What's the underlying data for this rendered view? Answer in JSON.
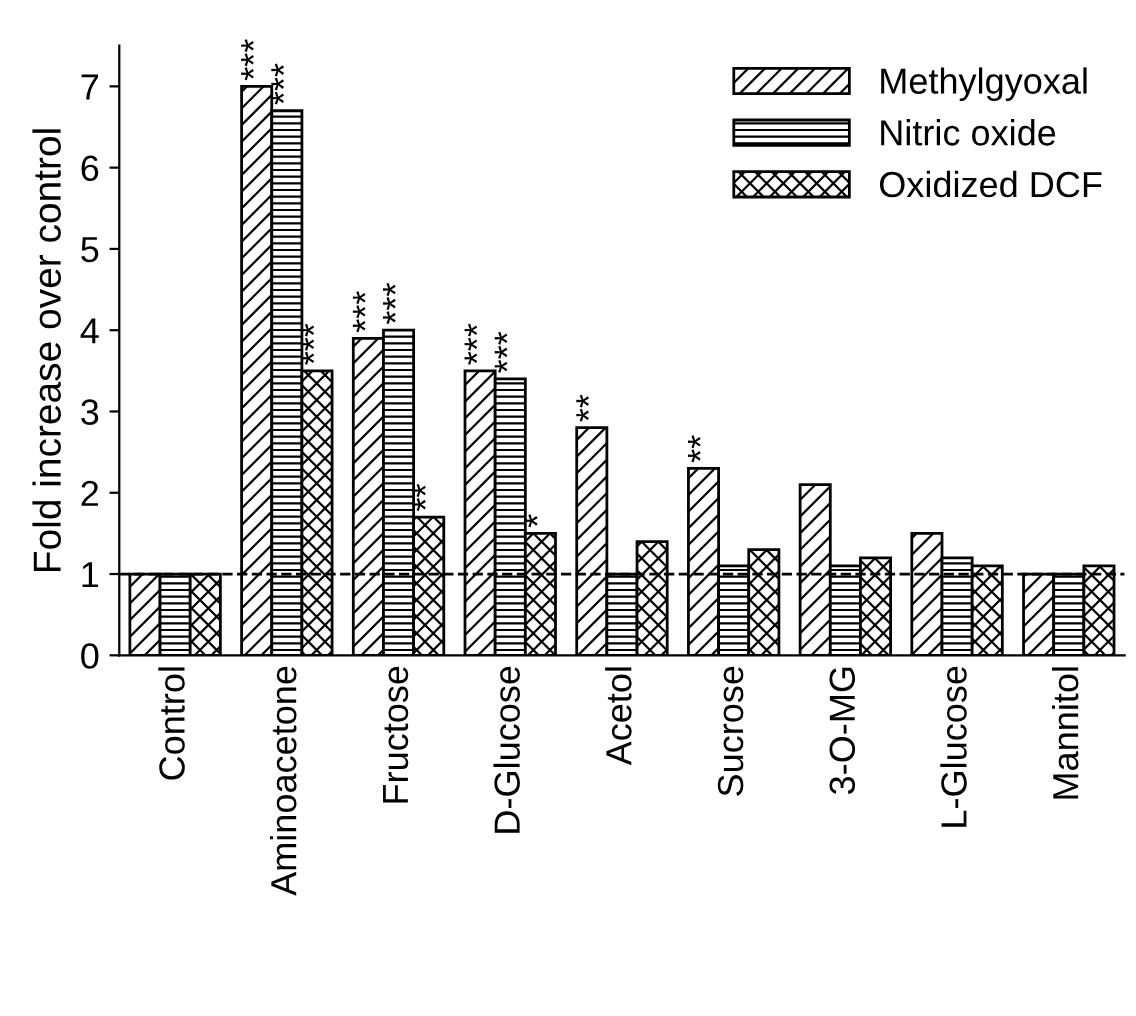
{
  "chart_data": {
    "type": "bar",
    "ylabel": "Fold increase over control",
    "categories": [
      "Control",
      "Aminoacetone",
      "Fructose",
      "D-Glucose",
      "Acetol",
      "Sucrose",
      "3-O-MG",
      "L-Glucose",
      "Mannitol"
    ],
    "series": [
      {
        "name": "Methylgyoxal",
        "color": "#000000",
        "values": [
          1.0,
          7.0,
          3.9,
          3.5,
          2.8,
          2.3,
          2.1,
          1.5,
          1.0
        ],
        "value_labels": [
          null,
          "***",
          "***",
          "***",
          "**",
          "**",
          null,
          null,
          null
        ]
      },
      {
        "name": "Nitric oxide",
        "color": "#000000",
        "values": [
          1.0,
          6.7,
          4.0,
          3.4,
          1.0,
          1.1,
          1.1,
          1.2,
          1.0
        ],
        "value_labels": [
          null,
          "***",
          "***",
          "***",
          null,
          null,
          null,
          null,
          null
        ]
      },
      {
        "name": "Oxidized DCF",
        "color": "#000000",
        "values": [
          1.0,
          3.5,
          1.7,
          1.5,
          1.4,
          1.3,
          1.2,
          1.1,
          1.1
        ],
        "value_labels": [
          null,
          "***",
          "**",
          "*",
          null,
          null,
          null,
          null,
          null
        ]
      }
    ],
    "ylim": [
      0,
      7.5
    ],
    "yticks": [
      0,
      1,
      2,
      3,
      4,
      5,
      6,
      7
    ],
    "grid": false,
    "legend": "top right",
    "ref_lines": [
      {
        "axis": "y",
        "value": 1,
        "line_style": "dashed"
      }
    ]
  }
}
